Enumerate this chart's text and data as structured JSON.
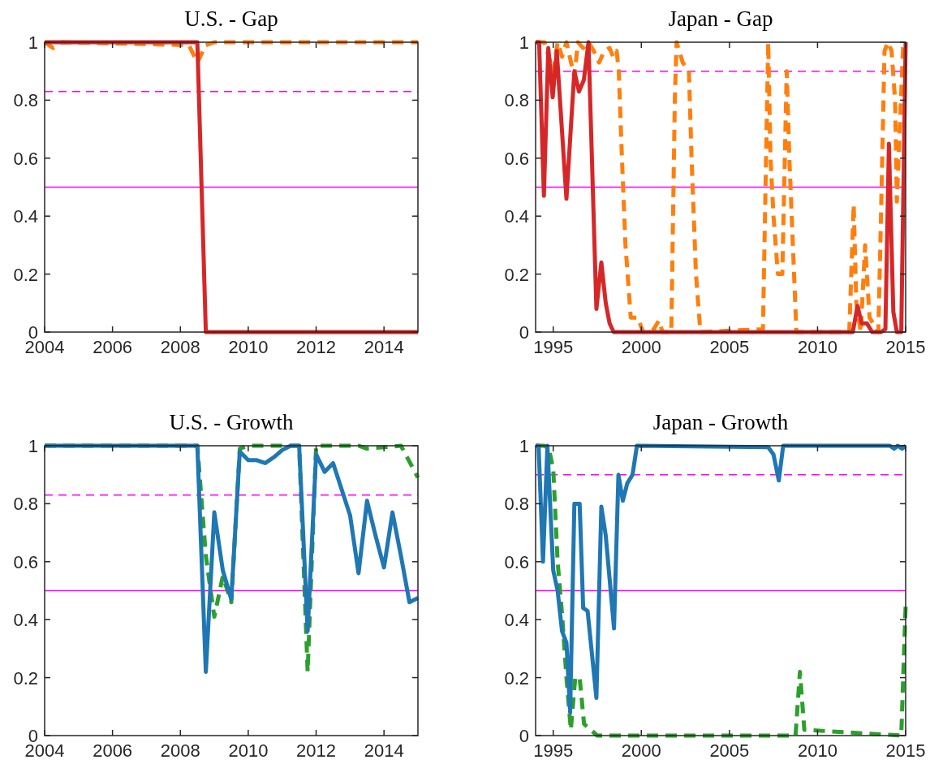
{
  "chart_data": [
    {
      "type": "line",
      "title": "U.S. - Gap",
      "xlim": [
        2004,
        2015
      ],
      "xticks": [
        2004,
        2006,
        2008,
        2010,
        2012,
        2014
      ],
      "ylim": [
        0,
        1
      ],
      "yticks": [
        0,
        0.2,
        0.4,
        0.6,
        0.8,
        1
      ],
      "grid": false,
      "ref_lines": [
        {
          "axis": "y",
          "value": 0.83,
          "color": "#ff00ff",
          "line_style": "dashed"
        },
        {
          "axis": "y",
          "value": 0.5,
          "color": "#ff00ff",
          "line_style": "solid"
        }
      ],
      "series": [
        {
          "color": "#ff7f0e",
          "line_style": "dashed",
          "x": [
            2004,
            2004.25,
            2004.5,
            2008.25,
            2008.5,
            2008.75,
            2009,
            2015
          ],
          "values": [
            1,
            0.98,
            1,
            0.99,
            0.93,
            0.99,
            1,
            1
          ]
        },
        {
          "color": "#d62728",
          "line_style": "solid",
          "x": [
            2004,
            2008.5,
            2008.75,
            2015
          ],
          "values": [
            1,
            1,
            0,
            0
          ]
        }
      ]
    },
    {
      "type": "line",
      "title": "Japan - Gap",
      "xlim": [
        1994,
        2015
      ],
      "xticks": [
        1995,
        2000,
        2005,
        2010,
        2015
      ],
      "ylim": [
        0,
        1
      ],
      "yticks": [
        0,
        0.2,
        0.4,
        0.6,
        0.8,
        1
      ],
      "grid": false,
      "ref_lines": [
        {
          "axis": "y",
          "value": 0.9,
          "color": "#ff00ff",
          "line_style": "dashed"
        },
        {
          "axis": "y",
          "value": 0.5,
          "color": "#ff00ff",
          "line_style": "solid"
        }
      ],
      "series": [
        {
          "color": "#ff7f0e",
          "line_style": "dashed",
          "x": [
            1994,
            1994.5,
            1995,
            1995.25,
            1995.5,
            1995.75,
            1996.2,
            1996.4,
            1996.7,
            1997,
            1997.3,
            1997.6,
            1997.9,
            1998.2,
            1998.4,
            1998.6,
            1998.72,
            1998.9,
            1999.1,
            1999.4,
            1999.8,
            2000.1,
            2000.7,
            2001,
            2001.2,
            2001.7,
            2001.9,
            2002,
            2002.35,
            2002.7,
            2002.85,
            2003.1,
            2003.35,
            2006.9,
            2007.2,
            2007.33,
            2007.5,
            2007.75,
            2008,
            2008.25,
            2008.4,
            2008.6,
            2008.8,
            2011.8,
            2012.05,
            2012.2,
            2012.45,
            2012.7,
            2012.95,
            2013.45,
            2013.6,
            2013.8,
            2014,
            2014.2,
            2014.4,
            2014.5,
            2014.7,
            2014.85,
            2015
          ],
          "values": [
            1,
            1,
            0.9,
            1,
            0.95,
            1,
            0.88,
            1,
            0.98,
            1,
            0.97,
            0.93,
            0.97,
            0.98,
            0.95,
            0.97,
            0.9,
            0.6,
            0.3,
            0.05,
            0.05,
            0,
            0.01,
            0.04,
            0,
            0,
            0.8,
            1,
            0.93,
            0.9,
            0.6,
            0.2,
            0,
            0.01,
            1,
            0.6,
            0.4,
            0.2,
            0.2,
            0.9,
            0.6,
            0.3,
            0,
            0,
            0.44,
            0.1,
            0,
            0.3,
            0.05,
            0,
            0.4,
            0.97,
            1,
            0.97,
            0.8,
            0.45,
            0.75,
            0.98,
            1
          ]
        },
        {
          "color": "#d62728",
          "line_style": "solid",
          "x": [
            1994,
            1994.2,
            1994.47,
            1994.72,
            1994.97,
            1995.2,
            1995.75,
            1996.2,
            1996.46,
            1996.74,
            1997,
            1997.45,
            1997.73,
            1997.98,
            1998.2,
            1998.43,
            2012,
            2012.27,
            2012.5,
            2012.8,
            2013.1,
            2013.6,
            2013.85,
            2014.05,
            2014.3,
            2014.5,
            2014.75,
            2015
          ],
          "values": [
            1,
            1,
            0.47,
            0.98,
            0.81,
            0.97,
            0.46,
            0.9,
            0.83,
            0.87,
            1,
            0.08,
            0.24,
            0.1,
            0.03,
            0,
            0,
            0.09,
            0.03,
            0.03,
            0,
            0,
            0.01,
            0.65,
            0.07,
            0,
            0,
            1
          ]
        }
      ]
    },
    {
      "type": "line",
      "title": "U.S. - Growth",
      "xlim": [
        2004,
        2015
      ],
      "xticks": [
        2004,
        2006,
        2008,
        2010,
        2012,
        2014
      ],
      "ylim": [
        0,
        1
      ],
      "yticks": [
        0,
        0.2,
        0.4,
        0.6,
        0.8,
        1
      ],
      "grid": false,
      "ref_lines": [
        {
          "axis": "y",
          "value": 0.83,
          "color": "#ff00ff",
          "line_style": "dashed"
        },
        {
          "axis": "y",
          "value": 0.5,
          "color": "#ff00ff",
          "line_style": "solid"
        }
      ],
      "series": [
        {
          "color": "#2ca02c",
          "line_style": "dashed",
          "x": [
            2004,
            2008.5,
            2008.75,
            2009,
            2009.25,
            2009.5,
            2009.75,
            2010,
            2011.5,
            2011.75,
            2012,
            2013.25,
            2013.5,
            2014.5,
            2015
          ],
          "values": [
            1,
            1,
            0.62,
            0.41,
            0.55,
            0.46,
            0.99,
            1,
            1,
            0.22,
            1,
            1,
            0.99,
            1,
            0.89
          ]
        },
        {
          "color": "#1f77b4",
          "line_style": "solid",
          "x": [
            2004,
            2008.5,
            2008.75,
            2009,
            2009.25,
            2009.5,
            2009.75,
            2010,
            2010.25,
            2010.5,
            2010.75,
            2011,
            2011.25,
            2011.5,
            2011.75,
            2012,
            2012.25,
            2012.5,
            2012.75,
            2013,
            2013.25,
            2013.5,
            2013.75,
            2014,
            2014.25,
            2014.5,
            2014.75,
            2015
          ],
          "values": [
            1,
            1,
            0.22,
            0.77,
            0.57,
            0.47,
            0.98,
            0.95,
            0.95,
            0.94,
            0.96,
            0.985,
            1,
            1,
            0.36,
            0.97,
            0.91,
            0.94,
            0.85,
            0.76,
            0.56,
            0.81,
            0.69,
            0.58,
            0.77,
            0.62,
            0.46,
            0.475
          ]
        }
      ]
    },
    {
      "type": "line",
      "title": "Japan - Growth",
      "xlim": [
        1994,
        2015
      ],
      "xticks": [
        1995,
        2000,
        2005,
        2010,
        2015
      ],
      "ylim": [
        0,
        1
      ],
      "yticks": [
        0,
        0.2,
        0.4,
        0.6,
        0.8,
        1
      ],
      "grid": false,
      "ref_lines": [
        {
          "axis": "y",
          "value": 0.9,
          "color": "#ff00ff",
          "line_style": "dashed"
        },
        {
          "axis": "y",
          "value": 0.5,
          "color": "#ff00ff",
          "line_style": "solid"
        }
      ],
      "series": [
        {
          "color": "#2ca02c",
          "line_style": "dashed",
          "x": [
            1994,
            1994.5,
            1994.75,
            1995,
            1995.25,
            1995.5,
            1995.75,
            1996,
            1996.25,
            1996.5,
            1996.75,
            1997.5,
            2008.75,
            2009,
            2009.25,
            2014.75,
            2015
          ],
          "values": [
            1,
            1,
            0.99,
            0.92,
            0.6,
            0.42,
            0.2,
            0.02,
            0.2,
            0.2,
            0.04,
            0,
            0,
            0.22,
            0.02,
            0,
            0.45
          ]
        },
        {
          "color": "#1f77b4",
          "line_style": "solid",
          "x": [
            1994,
            1994.17,
            1994.42,
            1994.67,
            1995,
            1995.25,
            1995.5,
            1995.75,
            1995.96,
            1996.2,
            1996.5,
            1996.7,
            1996.95,
            1997.45,
            1997.73,
            1997.98,
            1998.45,
            1998.7,
            1998.95,
            1999.2,
            1999.5,
            1999.75,
            2007.2,
            2007.5,
            2007.8,
            2008.05,
            2014.1,
            2014.35,
            2014.55,
            2014.8,
            2015
          ],
          "values": [
            1,
            1,
            0.6,
            1,
            0.57,
            0.5,
            0.36,
            0.32,
            0.08,
            0.8,
            0.8,
            0.44,
            0.43,
            0.13,
            0.79,
            0.69,
            0.37,
            0.9,
            0.81,
            0.87,
            0.9,
            1,
            0.995,
            0.97,
            0.88,
            1,
            1,
            0.99,
            1,
            0.99,
            1
          ]
        }
      ]
    }
  ]
}
